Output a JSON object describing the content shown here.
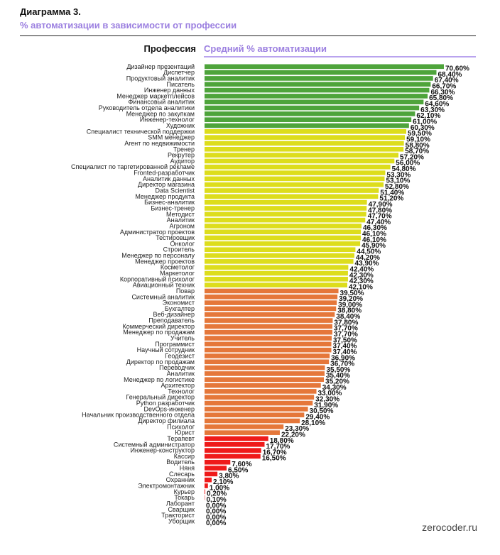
{
  "title": "Диаграмма 3.",
  "subtitle": "% автоматизации в зависимости от профессии",
  "header": {
    "left": "Профессия",
    "right": "Средний % автоматизации"
  },
  "source": "zerocoder.ru",
  "colors": {
    "accent": "#9b7fe0",
    "green": "#4ea43b",
    "yellow": "#dddd1c",
    "orange": "#e5773a",
    "red": "#ef1a1a"
  },
  "chart_data": {
    "type": "bar",
    "orientation": "horizontal",
    "ylabel": "Средний % автоматизации",
    "xlim": [
      0,
      70.6
    ],
    "grid": false,
    "categories": [
      "Дизайнер презентаций",
      "Диспетчер",
      "Продуктовый аналитик",
      "Писатель",
      "Инженер данных",
      "Менеджер маркетплейсов",
      "Финансовый аналитик",
      "Руководитель отдела аналитики",
      "Менеджер по закупкам",
      "Инженер-технолог",
      "Художник",
      "Специалист технической поддержки",
      "SMM менеджер",
      "Агент по недвижимости",
      "Тренер",
      "Рекрутер",
      "Аудитор",
      "Специалист по таргетированной рекламе",
      "Fronted-разработчик",
      "Аналитик данных",
      "Директор магазина",
      "Data Scientist",
      "Менеджер продукта",
      "Бизнес-аналитик",
      "Бизнес-тренер",
      "Методист",
      "Аналитик",
      "Агроном",
      "Администратор проектов",
      "Тестировщик",
      "Онколог",
      "Строитель",
      "Менеджер по персоналу",
      "Менеджер проектов",
      "Косметолог",
      "Маркетолог",
      "Корпоративный психолог",
      "Авиационный техник",
      "Повар",
      "Системный аналитик",
      "Экономист",
      "Бухгалтер",
      "Веб-дизайнер",
      "Преподаватель",
      "Коммерческий директор",
      "Менеджер по продажам",
      "Учитель",
      "Программист",
      "Научный сотрудник",
      "Геодезист",
      "Директор по продажам",
      "Переводчик",
      "Аналитик",
      "Менеджер по логистике",
      "Архитектор",
      "Технолог",
      "Генеральный директор",
      "Python разработчик",
      "DevOps-инженер",
      "Начальник производственного отдела",
      "Директор филиала",
      "Психолог",
      "Юрист",
      "Терапевт",
      "Системный администратор",
      "Инженер-конструктор",
      "Кассир",
      "Водитель",
      "Няня",
      "Слесарь",
      "Охранник",
      "Электромонтажник",
      "Курьер",
      "Токарь",
      "Лаборант",
      "Сварщик",
      "Тракторист",
      "Уборщик"
    ],
    "values": [
      70.6,
      68.4,
      67.4,
      66.7,
      66.3,
      65.8,
      64.6,
      63.3,
      62.1,
      61.0,
      60.3,
      59.5,
      59.1,
      58.8,
      58.7,
      57.2,
      56.0,
      54.8,
      53.3,
      53.1,
      52.8,
      51.4,
      51.2,
      47.9,
      47.8,
      47.7,
      47.4,
      46.3,
      46.1,
      46.1,
      45.9,
      44.5,
      44.2,
      43.9,
      42.4,
      42.3,
      42.3,
      42.1,
      39.5,
      39.2,
      39.0,
      38.8,
      38.4,
      37.8,
      37.7,
      37.7,
      37.5,
      37.4,
      37.4,
      36.9,
      36.7,
      35.5,
      35.4,
      35.2,
      34.3,
      33.0,
      32.3,
      31.9,
      30.5,
      29.4,
      28.1,
      23.3,
      22.2,
      18.8,
      17.7,
      16.7,
      16.5,
      7.6,
      6.5,
      3.8,
      2.1,
      1.0,
      0.2,
      0.1,
      0.0,
      0.0,
      0.0,
      0.0
    ],
    "value_labels": [
      "70,60%",
      "68,40%",
      "67,40%",
      "66,70%",
      "66,30%",
      "65,80%",
      "64,60%",
      "63,30%",
      "62,10%",
      "61,00%",
      "60,30%",
      "59,50%",
      "59,10%",
      "58,80%",
      "58,70%",
      "57,20%",
      "56,00%",
      "54,80%",
      "53,30%",
      "53,10%",
      "52,80%",
      "51,40%",
      "51,20%",
      "47,90%",
      "47,80%",
      "47,70%",
      "47,40%",
      "46,30%",
      "46,10%",
      "46,10%",
      "45,90%",
      "44,50%",
      "44,20%",
      "43,90%",
      "42,40%",
      "42,30%",
      "42,30%",
      "42,10%",
      "39,50%",
      "39,20%",
      "39,00%",
      "38,80%",
      "38,40%",
      "37,80%",
      "37,70%",
      "37,70%",
      "37,50%",
      "37,40%",
      "37,40%",
      "36,90%",
      "36,70%",
      "35,50%",
      "35,40%",
      "35,20%",
      "34,30%",
      "33,00%",
      "32,30%",
      "31,90%",
      "30,50%",
      "29,40%",
      "28,10%",
      "23,30%",
      "22,20%",
      "18,80%",
      "17,70%",
      "16,70%",
      "16,50%",
      "7,60%",
      "6,50%",
      "3,80%",
      "2,10%",
      "1,00%",
      "0,20%",
      "0,10%",
      "0,00%",
      "0,00%",
      "0,00%",
      "0,00%"
    ],
    "color_groups": [
      {
        "color": "#4ea43b",
        "count": 11
      },
      {
        "color": "#dddd1c",
        "count": 27
      },
      {
        "color": "#e5773a",
        "count": 25
      },
      {
        "color": "#ef1a1a",
        "count": 15
      }
    ]
  }
}
